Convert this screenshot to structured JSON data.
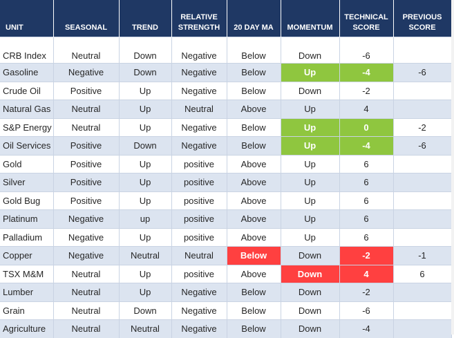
{
  "headers": {
    "unit": "UNIT",
    "seasonal": "SEASONAL",
    "trend": "TREND",
    "relative_1": "RELATIVE",
    "relative_2": "STRENGTH",
    "ma": "20 DAY MA",
    "momentum": "MOMENTUM",
    "technical_1": "TECHNICAL",
    "technical_2": "SCORE",
    "previous_1": "PREVIOUS",
    "previous_2": "SCORE"
  },
  "colors": {
    "header_bg": "#1f3864",
    "alt_row_bg": "#dce4f0",
    "green": "#8fc63f",
    "red": "#ff4040"
  },
  "rows": [
    {
      "unit": "CRB Index",
      "seasonal": "Neutral",
      "trend": "Down",
      "relative_strength": "Negative",
      "ma20": "Below",
      "momentum": "Down",
      "technical_score": "-6",
      "previous_score": ""
    },
    {
      "unit": "Gasoline",
      "seasonal": "Negative",
      "trend": "Down",
      "relative_strength": "Negative",
      "ma20": "Below",
      "momentum": "Up",
      "technical_score": "-4",
      "previous_score": "-6"
    },
    {
      "unit": "Crude Oil",
      "seasonal": "Positive",
      "trend": "Up",
      "relative_strength": "Negative",
      "ma20": "Below",
      "momentum": "Down",
      "technical_score": "-2",
      "previous_score": ""
    },
    {
      "unit": "Natural Gas",
      "seasonal": "Neutral",
      "trend": "Up",
      "relative_strength": "Neutral",
      "ma20": "Above",
      "momentum": "Up",
      "technical_score": "4",
      "previous_score": ""
    },
    {
      "unit": "S&P Energy",
      "seasonal": "Neutral",
      "trend": "Up",
      "relative_strength": "Negative",
      "ma20": "Below",
      "momentum": "Up",
      "technical_score": "0",
      "previous_score": "-2"
    },
    {
      "unit": "Oil Services",
      "seasonal": "Positive",
      "trend": "Down",
      "relative_strength": "Negative",
      "ma20": "Below",
      "momentum": "Up",
      "technical_score": "-4",
      "previous_score": "-6"
    },
    {
      "unit": "Gold",
      "seasonal": "Positive",
      "trend": "Up",
      "relative_strength": "positive",
      "ma20": "Above",
      "momentum": "Up",
      "technical_score": "6",
      "previous_score": ""
    },
    {
      "unit": "Silver",
      "seasonal": "Positive",
      "trend": "Up",
      "relative_strength": "positive",
      "ma20": "Above",
      "momentum": "Up",
      "technical_score": "6",
      "previous_score": ""
    },
    {
      "unit": "Gold Bug",
      "seasonal": "Positive",
      "trend": "Up",
      "relative_strength": "positive",
      "ma20": "Above",
      "momentum": "Up",
      "technical_score": "6",
      "previous_score": ""
    },
    {
      "unit": "Platinum",
      "seasonal": "Negative",
      "trend": "up",
      "relative_strength": "positive",
      "ma20": "Above",
      "momentum": "Up",
      "technical_score": "6",
      "previous_score": ""
    },
    {
      "unit": "Palladium",
      "seasonal": "Negative",
      "trend": "Up",
      "relative_strength": "positive",
      "ma20": "Above",
      "momentum": "Up",
      "technical_score": "6",
      "previous_score": ""
    },
    {
      "unit": "Copper",
      "seasonal": "Negative",
      "trend": "Neutral",
      "relative_strength": "Neutral",
      "ma20": "Below",
      "momentum": "Down",
      "technical_score": "-2",
      "previous_score": "-1"
    },
    {
      "unit": "TSX M&M",
      "seasonal": "Neutral",
      "trend": "Up",
      "relative_strength": "positive",
      "ma20": "Above",
      "momentum": "Down",
      "technical_score": "4",
      "previous_score": "6"
    },
    {
      "unit": "Lumber",
      "seasonal": "Neutral",
      "trend": "Up",
      "relative_strength": "Negative",
      "ma20": "Below",
      "momentum": "Down",
      "technical_score": "-2",
      "previous_score": ""
    },
    {
      "unit": "Grain",
      "seasonal": "Neutral",
      "trend": "Down",
      "relative_strength": "Negative",
      "ma20": "Below",
      "momentum": "Down",
      "technical_score": "-6",
      "previous_score": ""
    },
    {
      "unit": "Agriculture",
      "seasonal": "Neutral",
      "trend": "Neutral",
      "relative_strength": "Negative",
      "ma20": "Below",
      "momentum": "Down",
      "technical_score": "-4",
      "previous_score": ""
    }
  ],
  "highlights": {
    "green": [
      [
        1,
        "momentum"
      ],
      [
        1,
        "technical_score"
      ],
      [
        4,
        "momentum"
      ],
      [
        4,
        "technical_score"
      ],
      [
        5,
        "momentum"
      ],
      [
        5,
        "technical_score"
      ]
    ],
    "red": [
      [
        11,
        "ma20"
      ],
      [
        11,
        "technical_score"
      ],
      [
        12,
        "momentum"
      ],
      [
        12,
        "technical_score"
      ]
    ]
  }
}
